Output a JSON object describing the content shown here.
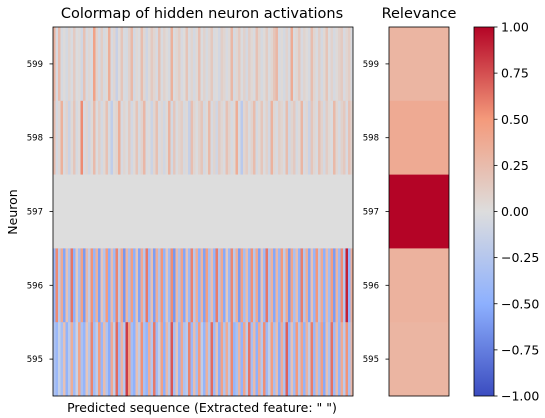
{
  "chart_data": [
    {
      "type": "heatmap",
      "title": "Colormap of hidden neuron activations",
      "xlabel": "Predicted sequence (Extracted feature: \" \")",
      "ylabel": "Neuron",
      "y_categories": [
        "599",
        "598",
        "597",
        "596",
        "595"
      ],
      "columns": 120,
      "rows": [
        {
          "neuron": "599",
          "values": [
            0.31,
            -0.04,
            0.26,
            -0.05,
            0.02,
            -0.06,
            0.07,
            -0.03,
            0.14,
            -0.02,
            0.03,
            -0.08,
            0.21,
            -0.04,
            0.05,
            -0.03,
            0.44,
            0.08,
            -0.06,
            0.12,
            -0.05,
            0.03,
            0.35,
            -0.04,
            0.06,
            -0.14,
            0.02,
            0.18,
            -0.03,
            -0.05,
            0.09,
            0.27,
            -0.06,
            0.04,
            -0.02,
            0.24,
            0.05,
            -0.09,
            0.03,
            0.15,
            0.06,
            -0.04,
            0.22,
            -0.03,
            0.08,
            0.02,
            -0.05,
            0.33,
            -0.02,
            0.05,
            0.12,
            -0.04,
            0.01,
            0.19,
            -0.03,
            0.07,
            -0.06,
            0.04,
            0.23,
            -0.02,
            0.08,
            -0.05,
            0.05,
            0.16,
            -0.03,
            0.02,
            -0.07,
            0.11,
            0.06,
            -0.04,
            0.03,
            0.28,
            -0.05,
            0.05,
            0.15,
            -0.02,
            0.09,
            -0.06,
            0.12,
            0.04,
            -0.03,
            0.21,
            0.07,
            -0.05,
            0.02,
            0.13,
            -0.03,
            0.06,
            0.18,
            0.28,
            -0.04,
            0.03,
            -0.06,
            0.08,
            -0.05,
            0.37,
            -0.02,
            0.05,
            0.16,
            -0.04,
            0.07,
            0.02,
            -0.05,
            0.24,
            0.06,
            -0.03,
            0.11,
            -0.06,
            0.04,
            0.19,
            -0.02,
            0.08,
            -0.05,
            0.03,
            0.09,
            0.14,
            -0.04,
            0.06,
            0.12,
            -0.03
          ]
        },
        {
          "neuron": "598",
          "values": [
            0.24,
            -0.06,
            0.05,
            0.33,
            -0.03,
            0.08,
            -0.12,
            0.04,
            0.18,
            -0.05,
            0.02,
            0.55,
            -0.04,
            0.07,
            -0.09,
            0.03,
            0.26,
            -0.02,
            0.11,
            -0.06,
            0.04,
            0.21,
            -0.05,
            -0.18,
            0.03,
            0.07,
            0.35,
            -0.04,
            0.06,
            -0.02,
            0.15,
            -0.07,
            0.03,
            0.19,
            -0.05,
            0.08,
            0.28,
            -0.03,
            0.02,
            -0.11,
            0.06,
            0.22,
            -0.04,
            0.05,
            -0.08,
            0.03,
            0.31,
            -0.06,
            0.17,
            -0.03,
            0.07,
            0.12,
            -0.05,
            0.04,
            -0.15,
            0.23,
            0.06,
            -0.02,
            0.09,
            0.18,
            -0.06,
            0.03,
            0.27,
            -0.04,
            0.07,
            -0.09,
            0.14,
            0.05,
            -0.03,
            0.21,
            0.08,
            -0.05,
            0.03,
            0.36,
            -0.04,
            -0.22,
            0.06,
            0.13,
            -0.03,
            0.08,
            0.25,
            -0.06,
            0.04,
            0.17,
            -0.02,
            0.09,
            -0.07,
            0.32,
            0.05,
            -0.04,
            0.11,
            0.06,
            -0.03,
            0.24,
            -0.08,
            0.07,
            0.15,
            -0.05,
            0.03,
            0.29,
            -0.04,
            0.06,
            -0.12,
            0.18,
            0.05,
            -0.03,
            0.22,
            0.08,
            -0.06,
            0.13,
            0.04,
            -0.02,
            0.27,
            0.06,
            -0.05,
            0.09,
            0.16,
            -0.04,
            0.21,
            0.07
          ]
        },
        {
          "neuron": "597",
          "values": [
            0.0,
            0.0,
            0.0,
            0.0,
            0.0,
            0.0,
            0.0,
            0.0,
            0.0,
            0.0,
            0.0,
            0.0,
            0.0,
            0.0,
            0.0,
            0.0,
            0.0,
            0.0,
            0.0,
            0.0,
            0.0,
            0.0,
            0.0,
            0.0,
            0.0,
            0.0,
            0.0,
            0.0,
            0.0,
            0.0,
            0.0,
            0.0,
            0.0,
            0.0,
            0.0,
            0.0,
            0.0,
            0.0,
            0.0,
            0.0,
            0.0,
            0.0,
            0.0,
            0.0,
            0.0,
            0.0,
            0.0,
            0.0,
            0.0,
            0.0,
            0.0,
            0.0,
            0.0,
            0.0,
            0.0,
            0.0,
            0.0,
            0.0,
            0.0,
            0.0,
            0.0,
            0.0,
            0.0,
            0.0,
            0.0,
            0.0,
            0.0,
            0.0,
            0.0,
            0.0,
            0.0,
            0.0,
            0.0,
            0.0,
            0.0,
            0.0,
            0.0,
            0.0,
            0.0,
            0.0,
            0.0,
            0.0,
            0.0,
            0.0,
            0.0,
            0.0,
            0.0,
            0.0,
            0.0,
            0.0,
            0.0,
            0.0,
            0.0,
            0.0,
            0.0,
            0.0,
            0.0,
            0.0,
            0.0,
            0.0,
            0.0,
            0.0,
            0.0,
            0.0,
            0.0,
            0.0,
            0.0,
            0.0,
            0.0,
            0.0,
            0.0,
            0.0,
            0.0,
            0.0,
            0.0,
            0.0,
            0.0,
            0.0,
            0.0,
            0.0
          ]
        },
        {
          "neuron": "596",
          "values": [
            -0.42,
            0.55,
            -0.23,
            0.38,
            -0.55,
            0.21,
            -0.31,
            0.62,
            -0.48,
            0.15,
            -0.36,
            0.44,
            -0.61,
            0.27,
            -0.19,
            0.52,
            -0.44,
            0.33,
            -0.58,
            0.18,
            -0.27,
            0.49,
            -0.52,
            0.24,
            -0.38,
            0.57,
            -0.21,
            0.41,
            -0.63,
            0.29,
            -0.34,
            0.46,
            -0.49,
            0.19,
            -0.56,
            0.38,
            -0.25,
            0.61,
            -0.42,
            0.22,
            -0.59,
            0.35,
            -0.28,
            0.51,
            -0.46,
            0.17,
            -0.37,
            0.54,
            -0.62,
            0.26,
            -0.31,
            0.43,
            -0.55,
            0.2,
            -0.4,
            0.58,
            -0.24,
            0.36,
            -0.5,
            0.3,
            -0.57,
            0.47,
            -0.33,
            0.23,
            -0.45,
            0.6,
            -0.29,
            0.39,
            -0.53,
            0.16,
            -0.41,
            0.56,
            -0.22,
            0.34,
            -0.6,
            0.45,
            -0.35,
            0.25,
            -0.47,
            0.53,
            -0.26,
            0.4,
            -0.58,
            0.19,
            -0.39,
            0.62,
            -0.3,
            0.32,
            -0.54,
            0.28,
            -0.43,
            0.5,
            -0.2,
            0.37,
            -0.61,
            0.42,
            -0.32,
            0.24,
            -0.48,
            0.59,
            -0.27,
            0.35,
            -0.56,
            0.21,
            -0.44,
            0.51,
            -0.23,
            0.38,
            -0.5,
            0.26,
            -0.36,
            0.47,
            -0.6,
            0.3,
            -0.41,
            0.55,
            -0.25,
            0.91,
            -0.46,
            0.33
          ]
        },
        {
          "neuron": "595",
          "values": [
            -0.28,
            -0.41,
            -0.15,
            -0.33,
            0.21,
            -0.46,
            -0.22,
            0.35,
            -0.38,
            -0.12,
            0.42,
            -0.31,
            -0.45,
            0.18,
            -0.26,
            0.57,
            -0.36,
            -0.19,
            0.48,
            -0.43,
            0.25,
            -0.29,
            -0.52,
            0.38,
            -0.17,
            0.66,
            -0.4,
            0.3,
            -0.24,
            0.81,
            0.46,
            -0.35,
            -0.48,
            0.22,
            -0.2,
            0.53,
            -0.32,
            -0.44,
            0.36,
            -0.27,
            0.61,
            -0.38,
            -0.16,
            0.45,
            -0.5,
            0.27,
            -0.23,
            0.72,
            -0.34,
            0.19,
            -0.47,
            0.4,
            -0.3,
            -0.21,
            0.58,
            -0.42,
            0.24,
            -0.36,
            0.49,
            -0.18,
            -0.45,
            0.33,
            -0.26,
            0.65,
            -0.39,
            0.21,
            -0.51,
            0.44,
            -0.28,
            0.37,
            -0.22,
            0.56,
            -0.43,
            -0.31,
            0.29,
            -0.47,
            0.41,
            -0.2,
            0.62,
            -0.35,
            0.26,
            -0.49,
            0.38,
            -0.25,
            0.54,
            -0.4,
            -0.17,
            0.47,
            -0.33,
            0.23,
            -0.52,
            0.35,
            -0.29,
            0.69,
            -0.44,
            0.2,
            -0.37,
            0.5,
            -0.24,
            0.43,
            -0.46,
            0.31,
            -0.19,
            0.59,
            -0.41,
            0.27,
            -0.34,
            0.46,
            -0.53,
            0.22,
            -0.3,
            0.63,
            -0.39,
            0.25,
            -0.45,
            0.37,
            -0.21,
            0.52,
            -0.32,
            0.28
          ]
        }
      ]
    },
    {
      "type": "heatmap",
      "title": "Relevance",
      "y_categories": [
        "599",
        "598",
        "597",
        "596",
        "595"
      ],
      "values": [
        0.3,
        0.38,
        1.0,
        0.32,
        0.3
      ]
    },
    {
      "type": "colorbar",
      "range": [
        -1.0,
        1.0
      ],
      "ticks": [
        "1.00",
        "0.75",
        "0.50",
        "0.25",
        "0.00",
        "−0.25",
        "−0.50",
        "−0.75",
        "−1.00"
      ]
    }
  ]
}
